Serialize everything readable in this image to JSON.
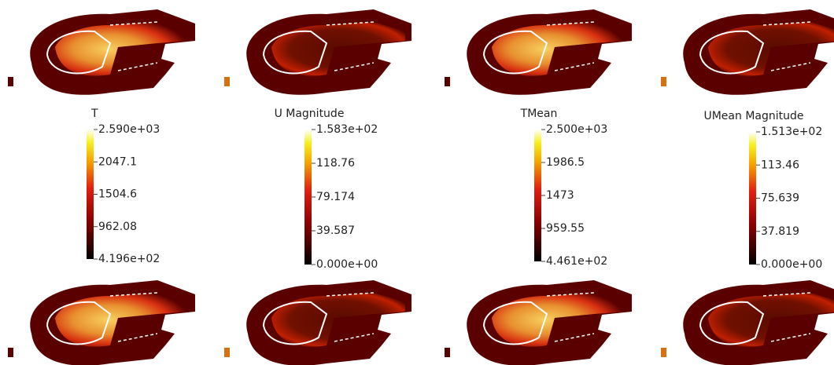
{
  "panels": [
    {
      "title": "T",
      "colorbar_labels": [
        "2.590e+03",
        "2047.1",
        "1504.6",
        "962.08",
        "4.196e+02"
      ]
    },
    {
      "title": "U Magnitude",
      "colorbar_labels": [
        "1.583e+02",
        "118.76",
        "79.174",
        "39.587",
        "0.000e+00"
      ]
    },
    {
      "title": "TMean",
      "colorbar_labels": [
        "2.500e+03",
        "1986.5",
        "1473",
        "959.55",
        "4.461e+02"
      ]
    },
    {
      "title": "UMean Magnitude",
      "colorbar_labels": [
        "1.513e+02",
        "113.46",
        "75.639",
        "37.819",
        "0.000e+00"
      ]
    }
  ]
}
